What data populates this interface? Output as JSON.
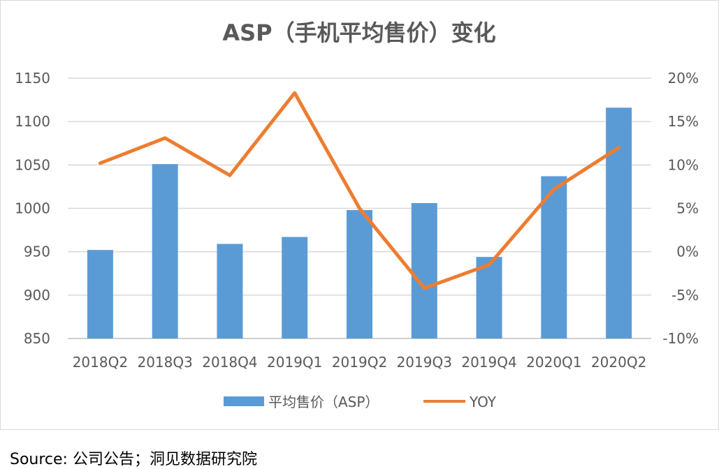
{
  "chart_data": {
    "type": "bar",
    "title": "ASP（手机平均售价）变化",
    "categories": [
      "2018Q2",
      "2018Q3",
      "2018Q4",
      "2019Q1",
      "2019Q2",
      "2019Q3",
      "2019Q4",
      "2020Q1",
      "2020Q2"
    ],
    "series": [
      {
        "name": "平均售价（ASP）",
        "type": "bar",
        "axis": "left",
        "values": [
          952,
          1051,
          959,
          967,
          998,
          1006,
          944,
          1037,
          1116
        ]
      },
      {
        "name": "YOY",
        "type": "line",
        "axis": "right",
        "values": [
          10.2,
          13.1,
          8.8,
          18.3,
          5.0,
          -4.2,
          -1.5,
          7.2,
          12.0
        ]
      }
    ],
    "y_left": {
      "min": 850,
      "max": 1150,
      "ticks": [
        "850",
        "900",
        "950",
        "1000",
        "1050",
        "1100",
        "1150"
      ]
    },
    "y_right": {
      "min": -10,
      "max": 20,
      "ticks": [
        "-10%",
        "-5%",
        "0%",
        "5%",
        "10%",
        "15%",
        "20%"
      ]
    },
    "grid": true,
    "legend_position": "bottom",
    "colors": {
      "bar": "#5b9bd5",
      "line": "#ed7d31",
      "grid": "#d9d9d9",
      "text": "#595959"
    }
  },
  "source": "Source:  公司公告；洞见数据研究院"
}
